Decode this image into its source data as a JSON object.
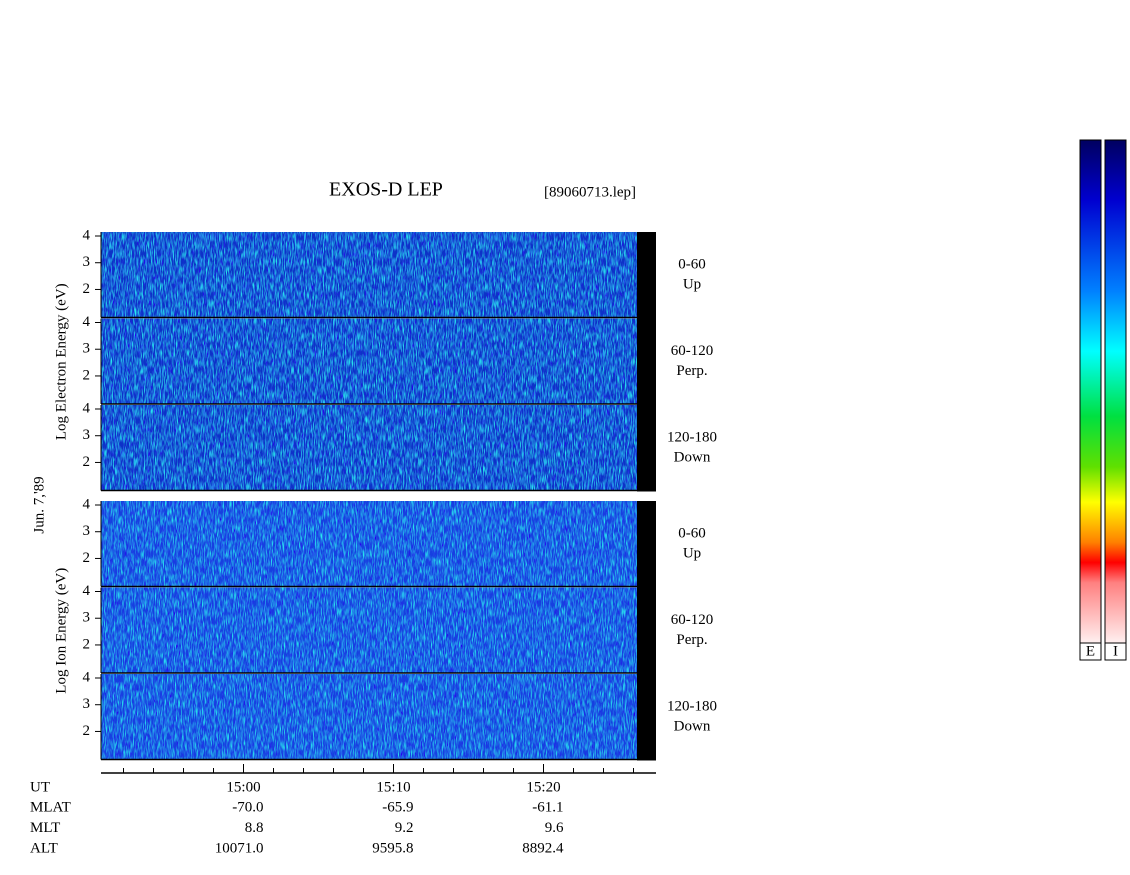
{
  "chart_data": {
    "type": "spectrogram",
    "title": "EXOS-D LEP",
    "file_label": "[89060713.lep]",
    "date_label": "Jun. 7,'89",
    "groups": [
      {
        "ylabel": "Log  Electron  Energy (eV)",
        "panels": [
          {
            "angle": "0-60",
            "direction": "Up"
          },
          {
            "angle": "60-120",
            "direction": "Perp."
          },
          {
            "angle": "120-180",
            "direction": "Down"
          }
        ]
      },
      {
        "ylabel": "Log  Ion  Energy (eV)",
        "panels": [
          {
            "angle": "0-60",
            "direction": "Up"
          },
          {
            "angle": "60-120",
            "direction": "Perp."
          },
          {
            "angle": "120-180",
            "direction": "Down"
          }
        ]
      }
    ],
    "ylim": [
      0.95,
      4.15
    ],
    "yticks": [
      2,
      3,
      4
    ],
    "xlim": [
      890.5,
      927.5
    ],
    "xticks": [
      {
        "value": 900,
        "label": "15:00"
      },
      {
        "value": 910,
        "label": "15:10"
      },
      {
        "value": 920,
        "label": "15:20"
      }
    ],
    "xminorticks": [
      892,
      894,
      896,
      898,
      902,
      904,
      906,
      908,
      912,
      914,
      916,
      918,
      922,
      924,
      926
    ],
    "xlabel": "UT",
    "x_rows": [
      {
        "name": "MLAT",
        "labels": [
          "-70.0",
          "-65.9",
          "-61.1"
        ]
      },
      {
        "name": "MLT",
        "labels": [
          "8.8",
          "9.2",
          "9.6"
        ]
      },
      {
        "name": "ALT",
        "labels": [
          "10071.0",
          "9595.8",
          "8892.4"
        ]
      }
    ],
    "colorbars": [
      "E",
      "I"
    ]
  }
}
